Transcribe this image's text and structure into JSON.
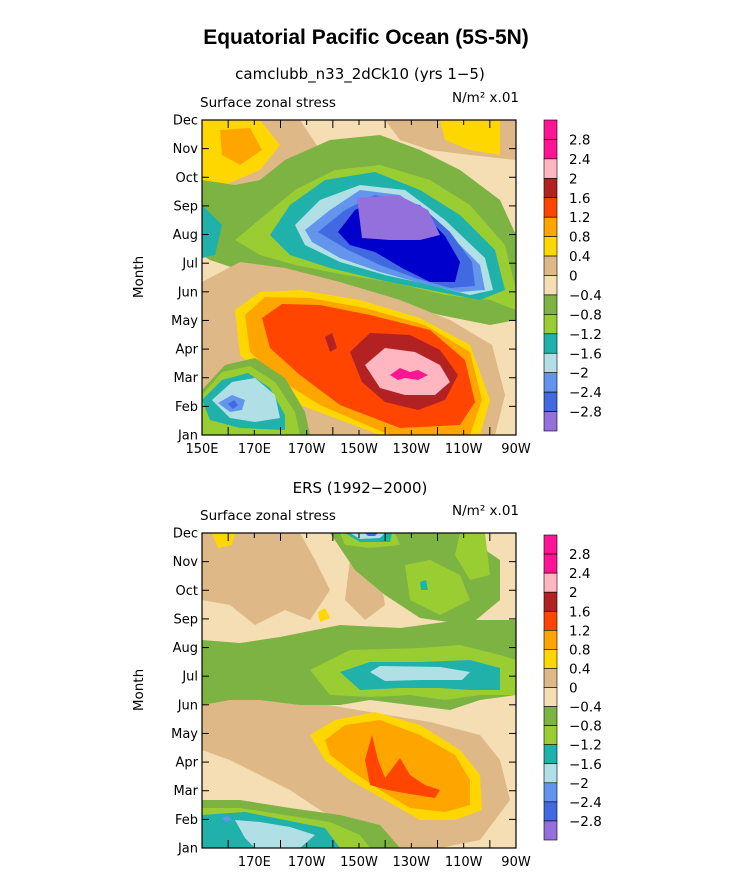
{
  "title": "Equatorial Pacific Ocean (5S-5N)",
  "palette": {
    "-3.2": "#9370db",
    "-2.8": "#0000cd",
    "-2.4": "#4169e1",
    "-2": "#6495ed",
    "-1.6": "#b0e0e6",
    "-1.2": "#20b2aa",
    "-0.8": "#9acd32",
    "-0.4": "#7cb342",
    "0": "#f5deb3",
    "0.4": "#deb887",
    "0.8": "#ffd700",
    "1.2": "#ffa500",
    "1.6": "#ff4500",
    "2": "#b22222",
    "2.4": "#ffb6c1",
    "2.8": "#ff1493"
  },
  "colorbar_labels": [
    "2.8",
    "2.4",
    "2",
    "1.6",
    "1.2",
    "0.8",
    "0.4",
    "0",
    "−0.4",
    "−0.8",
    "−1.2",
    "−1.6",
    "−2",
    "−2.4",
    "−2.8"
  ],
  "chart_data": [
    {
      "type": "heatmap",
      "title": "camclubb_n33_2dCk10 (yrs 1−5)",
      "left_label": "Surface zonal stress",
      "right_label": "N/m² x.01",
      "ylabel": "Month",
      "x_tick_labels": [
        "150E",
        "170E",
        "170W",
        "150W",
        "130W",
        "110W",
        "90W"
      ],
      "y_tick_labels": [
        "Jan",
        "Feb",
        "Mar",
        "Apr",
        "May",
        "Jun",
        "Jul",
        "Aug",
        "Sep",
        "Oct",
        "Nov",
        "Dec"
      ],
      "x_range": [
        "150E",
        "90W"
      ],
      "contour_levels": [
        -2.8,
        -2.4,
        -2,
        -1.6,
        -1.2,
        -0.8,
        -0.4,
        0,
        0.4,
        0.8,
        1.2,
        1.6,
        2,
        2.4,
        2.8
      ],
      "features": [
        {
          "region": "170W-110W, Jul-Sep",
          "min_value": -3.2
        },
        {
          "region": "150W-120W, Mar-Apr",
          "max_value": 2.8
        },
        {
          "region": "160E-170W, Jan-Feb",
          "min_value": -2.4
        },
        {
          "region": "150E-165E, Nov-Dec",
          "max_value": 1.2
        },
        {
          "region": "130W-115W, Nov-Dec",
          "max_value": 0.8
        }
      ]
    },
    {
      "type": "heatmap",
      "title": "ERS (1992−2000)",
      "left_label": "Surface zonal stress",
      "right_label": "N/m² x.01",
      "ylabel": "Month",
      "x_tick_labels": [
        "170E",
        "170W",
        "150W",
        "130W",
        "110W",
        "90W"
      ],
      "y_tick_labels": [
        "Jan",
        "Feb",
        "Mar",
        "Apr",
        "May",
        "Jun",
        "Jul",
        "Aug",
        "Sep",
        "Oct",
        "Nov",
        "Dec"
      ],
      "x_range": [
        "150E",
        "90W"
      ],
      "contour_levels": [
        -2.8,
        -2.4,
        -2,
        -1.6,
        -1.2,
        -0.8,
        -0.4,
        0,
        0.4,
        0.8,
        1.2,
        1.6,
        2,
        2.4,
        2.8
      ],
      "features": [
        {
          "region": "160W-120W, Mar-May",
          "max_value": 2.0
        },
        {
          "region": "150W-110W, Jul",
          "min_value": -1.6
        },
        {
          "region": "170E-170W, Feb",
          "min_value": -1.6
        },
        {
          "region": "150W-130W, Dec",
          "min_value": -2.4
        }
      ]
    }
  ]
}
